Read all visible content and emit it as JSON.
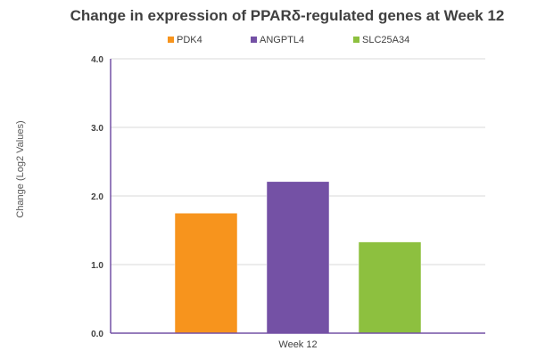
{
  "chart_data": {
    "type": "bar",
    "title": "Change in expression of PPARδ-regulated genes at Week 12",
    "xlabel": "",
    "ylabel": "Change (Log2 Values)",
    "categories": [
      "Week 12"
    ],
    "series": [
      {
        "name": "PDK4",
        "values": [
          1.75
        ],
        "color": "#F7941D"
      },
      {
        "name": "ANGPTL4",
        "values": [
          2.21
        ],
        "color": "#7451A5"
      },
      {
        "name": "SLC25A34",
        "values": [
          1.33
        ],
        "color": "#8DC03F"
      }
    ],
    "ylim": [
      0,
      4
    ],
    "yticks": [
      "0.0",
      "1.0",
      "2.0",
      "3.0",
      "4.0"
    ],
    "grid": true,
    "legend_position": "top"
  }
}
